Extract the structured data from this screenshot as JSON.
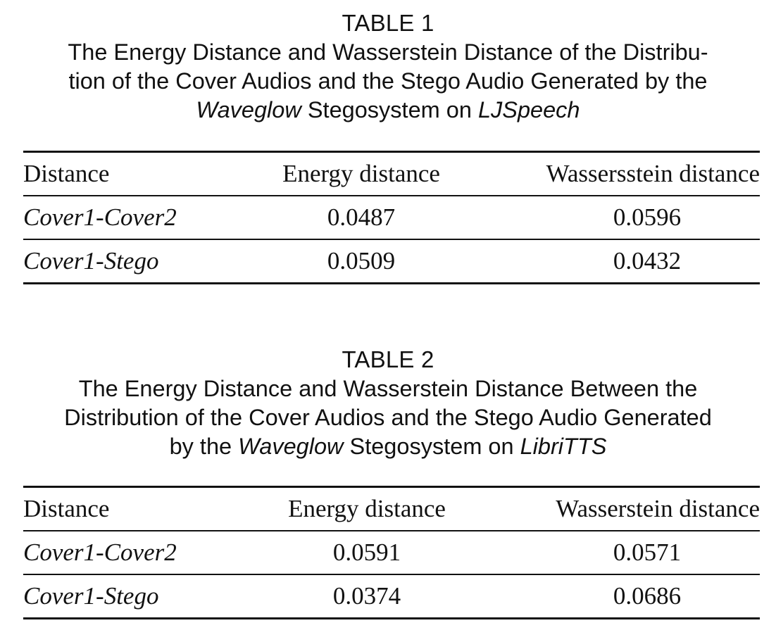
{
  "tables": [
    {
      "label": "TABLE 1",
      "caption": {
        "line1": "The Energy Distance and Wasserstein Distance of the Distribu-",
        "line2": "tion of the Cover Audios and the Stego Audio Generated by the",
        "line3_italic1": "Waveglow",
        "line3_text": " Stegosystem on ",
        "line3_italic2": "LJSpeech"
      },
      "headers": [
        "Distance",
        "Energy distance",
        "Wassersstein distance"
      ],
      "rows": [
        {
          "name": "Cover1-Cover2",
          "energy": "0.0487",
          "wasserstein": "0.0596"
        },
        {
          "name": "Cover1-Stego",
          "energy": "0.0509",
          "wasserstein": "0.0432"
        }
      ]
    },
    {
      "label": "TABLE 2",
      "caption": {
        "line1": "The Energy Distance and Wasserstein Distance Between the",
        "line2": "Distribution of the Cover Audios and the Stego Audio Generated",
        "line3_text1": "by the ",
        "line3_italic1": "Waveglow",
        "line3_text2": " Stegosystem on ",
        "line3_italic2": "LibriTTS"
      },
      "headers": [
        "Distance",
        "Energy distance",
        "Wasserstein distance"
      ],
      "rows": [
        {
          "name": "Cover1-Cover2",
          "energy": "0.0591",
          "wasserstein": "0.0571"
        },
        {
          "name": "Cover1-Stego",
          "energy": "0.0374",
          "wasserstein": "0.0686"
        }
      ]
    }
  ]
}
